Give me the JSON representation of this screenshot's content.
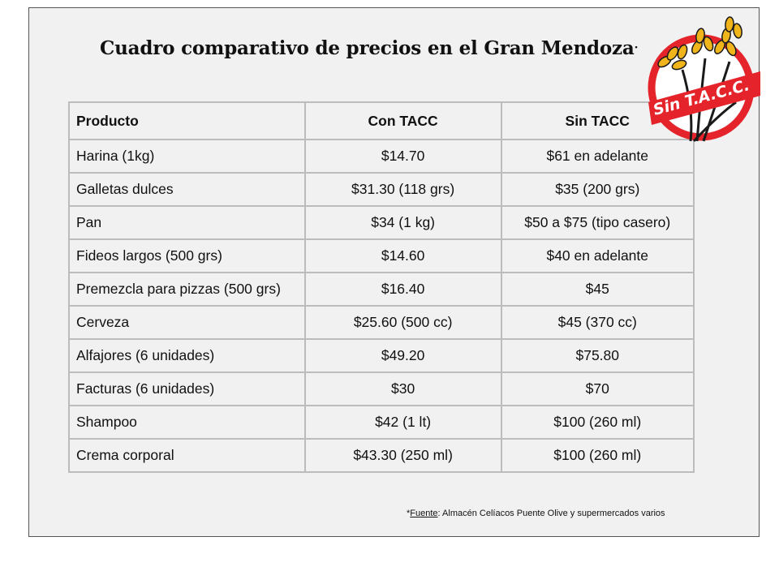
{
  "title": {
    "text": "Cuadro comparativo de precios en el Gran Mendoza",
    "mark": "·"
  },
  "logo": {
    "text": "Sin T.A.C.C.",
    "color_red": "#e5232b",
    "color_gold": "#f0b51b"
  },
  "table": {
    "headers": [
      "Producto",
      "Con TACC",
      "Sin TACC"
    ],
    "rows": [
      [
        "Harina (1kg)",
        "$14.70",
        "$61 en adelante"
      ],
      [
        "Galletas dulces",
        "$31.30 (118 grs)",
        "$35 (200 grs)"
      ],
      [
        "Pan",
        "$34 (1 kg)",
        "$50 a $75 (tipo casero)"
      ],
      [
        "Fideos largos (500 grs)",
        "$14.60",
        "$40 en adelante"
      ],
      [
        "Premezcla para pizzas (500 grs)",
        "$16.40",
        "$45"
      ],
      [
        "Cerveza",
        "$25.60 (500 cc)",
        "$45 (370 cc)"
      ],
      [
        "Alfajores (6 unidades)",
        "$49.20",
        "$75.80"
      ],
      [
        "Facturas (6 unidades)",
        "$30",
        "$70"
      ],
      [
        "Shampoo",
        "$42 (1 lt)",
        "$100 (260 ml)"
      ],
      [
        "Crema  corporal",
        "$43.30 (250 ml)",
        "$100 (260 ml)"
      ]
    ]
  },
  "source": {
    "prefix": "*",
    "label": "Fuente",
    "text": ": Almacén Celíacos Puente Olive y supermercados varios"
  }
}
